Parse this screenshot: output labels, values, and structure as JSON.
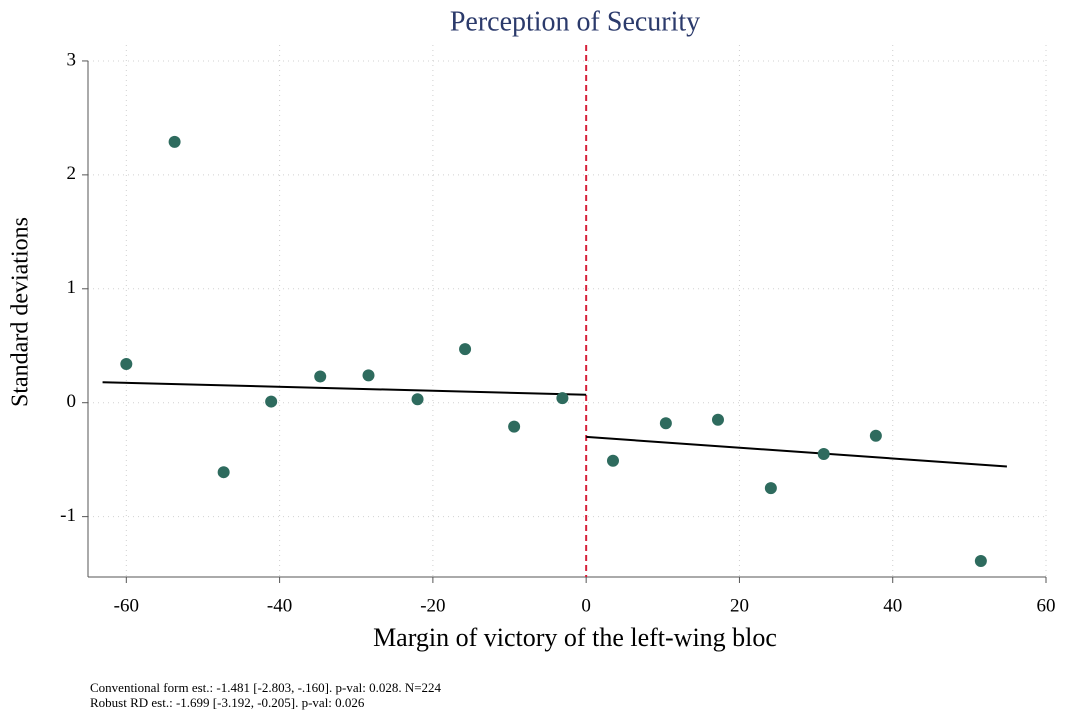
{
  "chart_data": {
    "type": "scatter",
    "title": "Perception of Security",
    "xlabel": "Margin of victory of the left-wing bloc",
    "ylabel": "Standard deviations",
    "notes": [
      "Conventional form est.: -1.481 [-2.803, -.160]. p-val: 0.028. N=224",
      "Robust RD est.: -1.699 [-3.192, -0.205]. p-val: 0.026"
    ],
    "x": [
      -60,
      -53.7,
      -47.3,
      -41.1,
      -34.7,
      -28.4,
      -22.0,
      -15.8,
      -9.4,
      -3.1,
      3.5,
      10.4,
      17.2,
      24.1,
      31.0,
      37.8,
      51.5
    ],
    "y": [
      0.34,
      2.29,
      -0.61,
      0.01,
      0.23,
      0.24,
      0.03,
      0.47,
      -0.21,
      0.04,
      -0.51,
      -0.18,
      -0.15,
      -0.75,
      -0.45,
      -0.29,
      -1.39
    ],
    "color": "#2e6b5e",
    "fit_lines": [
      {
        "x": [
          -63.1,
          0
        ],
        "y": [
          0.18,
          0.07
        ]
      },
      {
        "x": [
          0,
          54.9
        ],
        "y": [
          -0.3,
          -0.56
        ]
      }
    ],
    "fit_color": "#000000",
    "cutoff": 0,
    "cutoff_color": "#d6203a",
    "xlim": [
      -65,
      60
    ],
    "ylim": [
      -1.53,
      3.14
    ],
    "xticks": [
      -60,
      -40,
      -20,
      0,
      20,
      40,
      60
    ],
    "yticks": [
      -1,
      0,
      1,
      2,
      3
    ],
    "grid": true
  }
}
